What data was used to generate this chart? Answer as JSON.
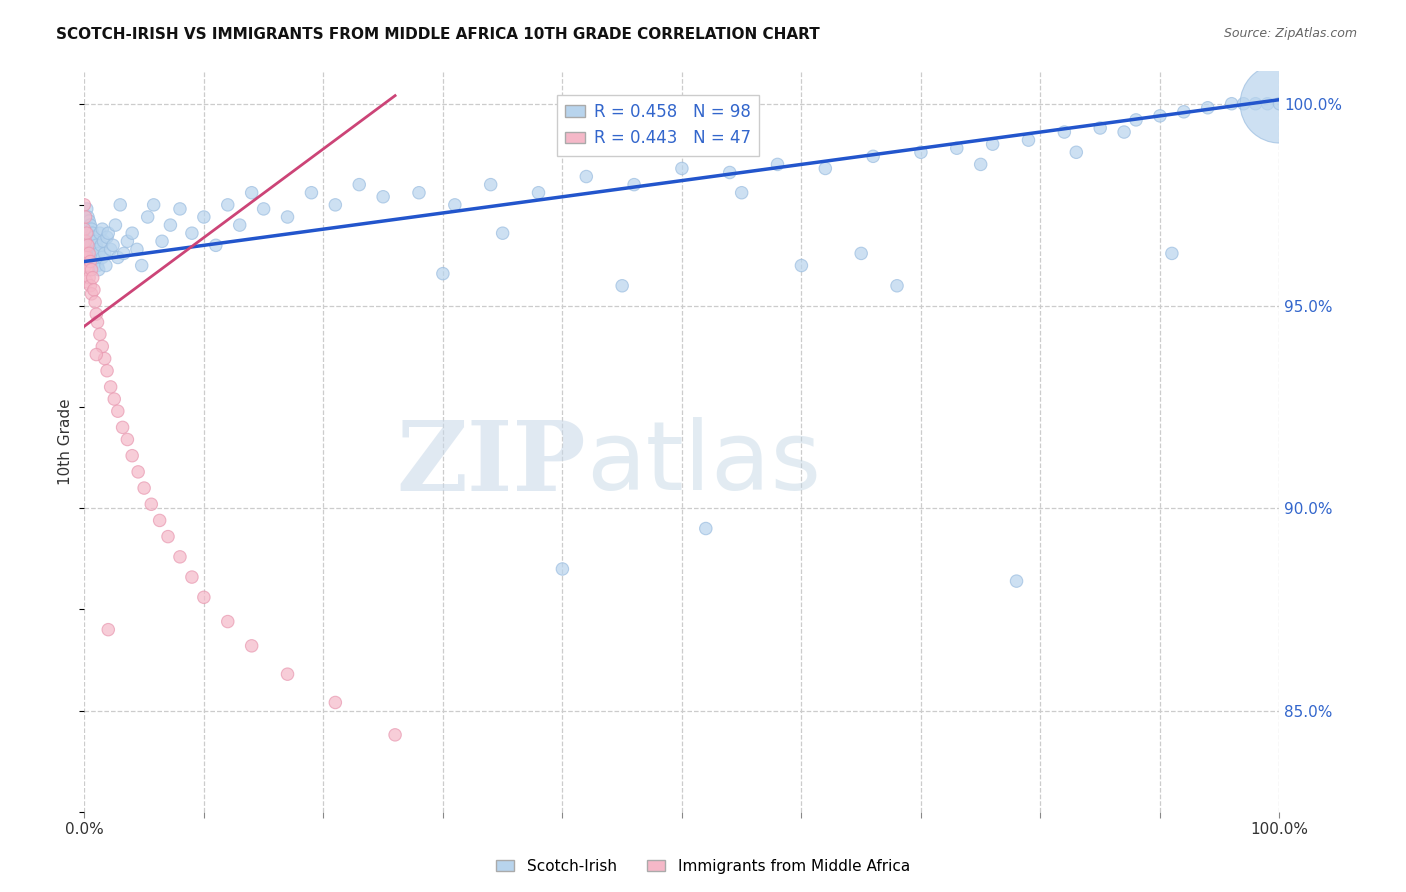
{
  "title": "SCOTCH-IRISH VS IMMIGRANTS FROM MIDDLE AFRICA 10TH GRADE CORRELATION CHART",
  "source": "Source: ZipAtlas.com",
  "ylabel": "10th Grade",
  "x_min": 0.0,
  "x_max": 1.0,
  "y_min": 0.825,
  "y_max": 1.008,
  "y_ticks": [
    0.85,
    0.9,
    0.95,
    1.0
  ],
  "y_tick_labels": [
    "85.0%",
    "90.0%",
    "95.0%",
    "100.0%"
  ],
  "x_ticks": [
    0.0,
    0.1,
    0.2,
    0.3,
    0.4,
    0.5,
    0.6,
    0.7,
    0.8,
    0.9,
    1.0
  ],
  "legend_blue_r": "R = 0.458",
  "legend_blue_n": "N = 98",
  "legend_pink_r": "R = 0.443",
  "legend_pink_n": "N = 47",
  "blue_color": "#b8d4ed",
  "blue_edge_color": "#9bbde0",
  "blue_line_color": "#2255cc",
  "pink_color": "#f5b8c8",
  "pink_edge_color": "#e898b0",
  "pink_line_color": "#cc4477",
  "watermark_zip": "ZIP",
  "watermark_atlas": "atlas",
  "blue_scatter_x": [
    0.002,
    0.003,
    0.003,
    0.004,
    0.004,
    0.005,
    0.005,
    0.006,
    0.006,
    0.007,
    0.007,
    0.008,
    0.008,
    0.009,
    0.009,
    0.01,
    0.01,
    0.011,
    0.011,
    0.012,
    0.012,
    0.013,
    0.014,
    0.015,
    0.015,
    0.016,
    0.017,
    0.018,
    0.019,
    0.02,
    0.022,
    0.024,
    0.026,
    0.028,
    0.03,
    0.033,
    0.036,
    0.04,
    0.044,
    0.048,
    0.053,
    0.058,
    0.065,
    0.072,
    0.08,
    0.09,
    0.1,
    0.11,
    0.12,
    0.13,
    0.14,
    0.15,
    0.17,
    0.19,
    0.21,
    0.23,
    0.25,
    0.28,
    0.31,
    0.34,
    0.38,
    0.42,
    0.46,
    0.5,
    0.54,
    0.58,
    0.62,
    0.66,
    0.7,
    0.73,
    0.76,
    0.79,
    0.82,
    0.85,
    0.88,
    0.9,
    0.92,
    0.94,
    0.96,
    0.97,
    0.98,
    0.99,
    1.0,
    1.0,
    0.3,
    0.45,
    0.52,
    0.6,
    0.68,
    0.75,
    0.83,
    0.87,
    0.91,
    0.35,
    0.55,
    0.78,
    0.4,
    0.65
  ],
  "blue_scatter_y": [
    0.974,
    0.972,
    0.968,
    0.971,
    0.967,
    0.97,
    0.966,
    0.969,
    0.965,
    0.968,
    0.964,
    0.967,
    0.963,
    0.966,
    0.962,
    0.965,
    0.961,
    0.964,
    0.96,
    0.963,
    0.959,
    0.968,
    0.965,
    0.969,
    0.962,
    0.966,
    0.963,
    0.96,
    0.967,
    0.968,
    0.964,
    0.965,
    0.97,
    0.962,
    0.975,
    0.963,
    0.966,
    0.968,
    0.964,
    0.96,
    0.972,
    0.975,
    0.966,
    0.97,
    0.974,
    0.968,
    0.972,
    0.965,
    0.975,
    0.97,
    0.978,
    0.974,
    0.972,
    0.978,
    0.975,
    0.98,
    0.977,
    0.978,
    0.975,
    0.98,
    0.978,
    0.982,
    0.98,
    0.984,
    0.983,
    0.985,
    0.984,
    0.987,
    0.988,
    0.989,
    0.99,
    0.991,
    0.993,
    0.994,
    0.996,
    0.997,
    0.998,
    0.999,
    1.0,
    1.0,
    1.0,
    1.0,
    1.0,
    1.0,
    0.958,
    0.955,
    0.895,
    0.96,
    0.955,
    0.985,
    0.988,
    0.993,
    0.963,
    0.968,
    0.978,
    0.882,
    0.885,
    0.963
  ],
  "blue_scatter_size": [
    80,
    80,
    80,
    80,
    80,
    80,
    80,
    80,
    80,
    80,
    80,
    80,
    80,
    80,
    80,
    80,
    80,
    80,
    80,
    80,
    80,
    80,
    80,
    80,
    80,
    80,
    80,
    80,
    80,
    80,
    80,
    80,
    80,
    80,
    80,
    80,
    80,
    80,
    80,
    80,
    80,
    80,
    80,
    80,
    80,
    80,
    80,
    80,
    80,
    80,
    80,
    80,
    80,
    80,
    80,
    80,
    80,
    80,
    80,
    80,
    80,
    80,
    80,
    80,
    80,
    80,
    80,
    80,
    80,
    80,
    80,
    80,
    80,
    80,
    80,
    80,
    80,
    80,
    80,
    80,
    80,
    80,
    3200,
    80,
    80,
    80,
    80,
    80,
    80,
    80,
    80,
    80,
    80,
    80,
    80,
    80,
    80,
    80
  ],
  "pink_scatter_x": [
    0.0,
    0.0,
    0.0,
    0.001,
    0.001,
    0.001,
    0.002,
    0.002,
    0.002,
    0.003,
    0.003,
    0.004,
    0.004,
    0.005,
    0.005,
    0.006,
    0.006,
    0.007,
    0.008,
    0.009,
    0.01,
    0.011,
    0.013,
    0.015,
    0.017,
    0.019,
    0.022,
    0.025,
    0.028,
    0.032,
    0.036,
    0.04,
    0.045,
    0.05,
    0.056,
    0.063,
    0.07,
    0.08,
    0.09,
    0.1,
    0.12,
    0.14,
    0.17,
    0.21,
    0.26,
    0.01,
    0.02
  ],
  "pink_scatter_y": [
    0.975,
    0.969,
    0.963,
    0.972,
    0.966,
    0.96,
    0.968,
    0.962,
    0.956,
    0.965,
    0.959,
    0.963,
    0.957,
    0.961,
    0.955,
    0.959,
    0.953,
    0.957,
    0.954,
    0.951,
    0.948,
    0.946,
    0.943,
    0.94,
    0.937,
    0.934,
    0.93,
    0.927,
    0.924,
    0.92,
    0.917,
    0.913,
    0.909,
    0.905,
    0.901,
    0.897,
    0.893,
    0.888,
    0.883,
    0.878,
    0.872,
    0.866,
    0.859,
    0.852,
    0.844,
    0.938,
    0.87
  ],
  "pink_scatter_size": [
    80,
    80,
    80,
    80,
    80,
    80,
    80,
    80,
    80,
    80,
    80,
    80,
    80,
    80,
    80,
    80,
    80,
    80,
    80,
    80,
    80,
    80,
    80,
    80,
    80,
    80,
    80,
    80,
    80,
    80,
    80,
    80,
    80,
    80,
    80,
    80,
    80,
    80,
    80,
    80,
    80,
    80,
    80,
    80,
    80,
    80,
    80
  ],
  "blue_line_x0": 0.0,
  "blue_line_x1": 1.0,
  "blue_line_y0": 0.961,
  "blue_line_y1": 1.001,
  "pink_line_x0": 0.0,
  "pink_line_x1": 0.26,
  "pink_line_y0": 0.945,
  "pink_line_y1": 1.002
}
